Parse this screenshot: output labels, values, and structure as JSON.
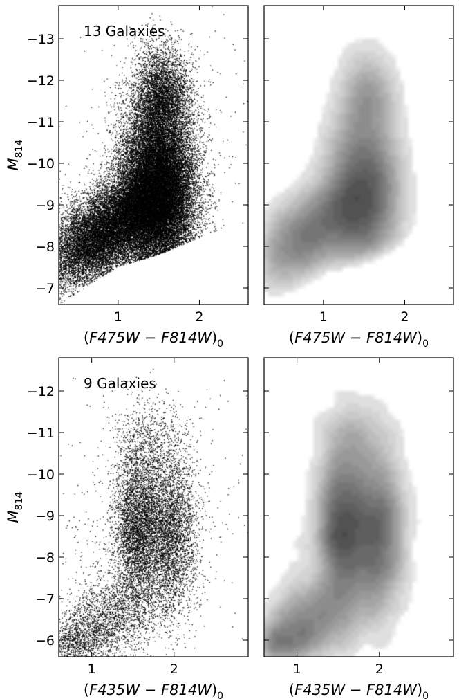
{
  "chart_data": [
    {
      "type": "scatter",
      "panel": "top-left",
      "annotation": "13 Galaxies",
      "xlabel_parts": [
        "(",
        "F475W",
        " − ",
        "F814W",
        ")",
        "0"
      ],
      "ylabel_parts": [
        "M",
        "814"
      ],
      "xlim": [
        0.27,
        2.6
      ],
      "ylim": [
        -6.6,
        -13.8
      ],
      "y_inverted": true,
      "xticks": [
        1,
        2
      ],
      "xtick_labels": [
        "1",
        "2"
      ],
      "yticks": [
        -7,
        -8,
        -9,
        -10,
        -11,
        -12,
        -13
      ],
      "ytick_labels": [
        "−7",
        "−8",
        "−9",
        "−10",
        "−11",
        "−12",
        "−13"
      ],
      "grid": false,
      "points": {
        "style": "black dots",
        "components": [
          {
            "n": 26000,
            "x": 1.48,
            "y": -9.3,
            "sx": 0.23,
            "sy": 1.05,
            "rho": 0
          },
          {
            "n": 11000,
            "x": 0.75,
            "y": -8.2,
            "sx": 0.32,
            "sy": 0.6,
            "rho": -0.45
          },
          {
            "n": 4000,
            "x": 1.55,
            "y": -11.6,
            "sx": 0.17,
            "sy": 0.6,
            "rho": 0
          },
          {
            "n": 6000,
            "x": 1.25,
            "y": -8.9,
            "sx": 0.28,
            "sy": 0.5,
            "rho": -0.3
          },
          {
            "n": 350,
            "x": 1.6,
            "y": -10.5,
            "sx": 0.6,
            "sy": 1.7,
            "rho": 0
          }
        ],
        "lower_boundary": {
          "x": [
            0.27,
            1.0,
            1.5,
            2.0,
            2.6
          ],
          "y": [
            -6.6,
            -7.5,
            -7.8,
            -8.2,
            -8.6
          ]
        }
      }
    },
    {
      "type": "heatmap",
      "panel": "top-right",
      "style": "grey filled density contours of the top-left sample",
      "xlabel_parts": [
        "(",
        "F475W",
        " − ",
        "F814W",
        ")",
        "0"
      ],
      "xlim": [
        0.27,
        2.6
      ],
      "ylim": [
        -6.6,
        -13.8
      ],
      "y_inverted": true,
      "xticks": [
        1,
        2
      ],
      "xtick_labels": [
        "1",
        "2"
      ],
      "yticks": [
        -7,
        -8,
        -9,
        -10,
        -11,
        -12,
        -13
      ],
      "grid": false,
      "peak": {
        "x": 1.38,
        "y": -9.15
      },
      "contour_floor_y": -6.8
    },
    {
      "type": "scatter",
      "panel": "bottom-left",
      "annotation": "9 Galaxies",
      "xlabel_parts": [
        "(",
        "F435W",
        " − ",
        "F814W",
        ")",
        "0"
      ],
      "ylabel_parts": [
        "M",
        "814"
      ],
      "xlim": [
        0.6,
        2.9
      ],
      "ylim": [
        -5.6,
        -12.8
      ],
      "y_inverted": true,
      "xticks": [
        1,
        2
      ],
      "xtick_labels": [
        "1",
        "2"
      ],
      "yticks": [
        -6,
        -7,
        -8,
        -9,
        -10,
        -11,
        -12
      ],
      "ytick_labels": [
        "−6",
        "−7",
        "−8",
        "−9",
        "−10",
        "−11",
        "−12"
      ],
      "grid": false,
      "points": {
        "style": "black dots",
        "components": [
          {
            "n": 3800,
            "x": 1.55,
            "y": -8.7,
            "sx": 0.14,
            "sy": 0.9,
            "rho": 0
          },
          {
            "n": 3800,
            "x": 1.95,
            "y": -8.6,
            "sx": 0.17,
            "sy": 0.95,
            "rho": 0
          },
          {
            "n": 1900,
            "x": 1.25,
            "y": -6.6,
            "sx": 0.32,
            "sy": 0.55,
            "rho": -0.3
          },
          {
            "n": 1000,
            "x": 0.85,
            "y": -6.0,
            "sx": 0.2,
            "sy": 0.35,
            "rho": -0.2
          },
          {
            "n": 700,
            "x": 1.7,
            "y": -10.7,
            "sx": 0.2,
            "sy": 0.55,
            "rho": 0
          },
          {
            "n": 400,
            "x": 1.4,
            "y": -8.7,
            "sx": 0.55,
            "sy": 1.8,
            "rho": 0
          },
          {
            "n": 140,
            "x": 2.2,
            "y": -9.8,
            "sx": 0.45,
            "sy": 1.9,
            "rho": 0
          }
        ]
      }
    },
    {
      "type": "heatmap",
      "panel": "bottom-right",
      "style": "grey filled density contours of the bottom-left sample",
      "xlabel_parts": [
        "(",
        "F435W",
        " − ",
        "F814W",
        ")",
        "0"
      ],
      "xlim": [
        0.6,
        2.9
      ],
      "ylim": [
        -5.6,
        -12.8
      ],
      "y_inverted": true,
      "xticks": [
        1,
        2
      ],
      "xtick_labels": [
        "1",
        "2"
      ],
      "yticks": [
        -6,
        -7,
        -8,
        -9,
        -10,
        -11,
        -12
      ],
      "grid": false,
      "peaks": [
        {
          "x": 1.55,
          "y": -8.6
        },
        {
          "x": 2.0,
          "y": -8.5
        }
      ]
    }
  ]
}
